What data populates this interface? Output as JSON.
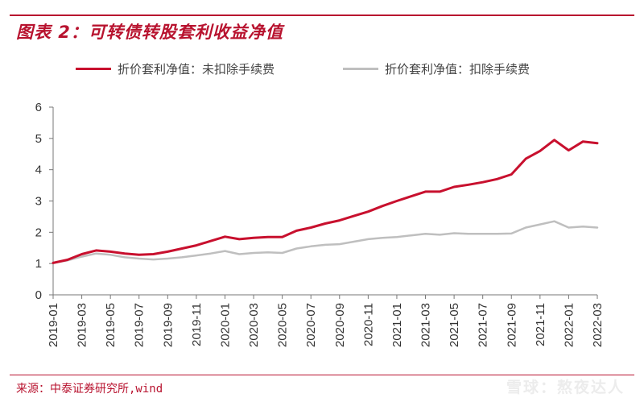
{
  "header": {
    "title": "图表 2：可转债转股套利收益净值"
  },
  "footer": {
    "source": "来源：中泰证券研究所,wind",
    "watermark": "雪球：熬夜达人"
  },
  "colors": {
    "accent": "#b8132f",
    "series_1": "#c8102e",
    "series_2": "#bfbfbf"
  },
  "chart_data": {
    "type": "line",
    "title": "图表 2：可转债转股套利收益净值",
    "xlabel": "",
    "ylabel": "",
    "ylim": [
      0,
      6
    ],
    "yticks": [
      0,
      1,
      2,
      3,
      4,
      5,
      6
    ],
    "x_tick_labels": [
      "2019-01",
      "2019-03",
      "2019-05",
      "2019-07",
      "2019-09",
      "2019-11",
      "2020-01",
      "2020-03",
      "2020-05",
      "2020-07",
      "2020-09",
      "2020-11",
      "2021-01",
      "2021-03",
      "2021-05",
      "2021-07",
      "2021-09",
      "2021-11",
      "2022-01",
      "2022-03"
    ],
    "grid": false,
    "legend_position": "top",
    "x": [
      "2019-01",
      "2019-02",
      "2019-03",
      "2019-04",
      "2019-05",
      "2019-06",
      "2019-07",
      "2019-08",
      "2019-09",
      "2019-10",
      "2019-11",
      "2019-12",
      "2020-01",
      "2020-02",
      "2020-03",
      "2020-04",
      "2020-05",
      "2020-06",
      "2020-07",
      "2020-08",
      "2020-09",
      "2020-10",
      "2020-11",
      "2020-12",
      "2021-01",
      "2021-02",
      "2021-03",
      "2021-04",
      "2021-05",
      "2021-06",
      "2021-07",
      "2021-08",
      "2021-09",
      "2021-10",
      "2021-11",
      "2021-12",
      "2022-01",
      "2022-02",
      "2022-03"
    ],
    "series": [
      {
        "name": "折价套利净值：未扣除手续费",
        "color": "#c8102e",
        "values": [
          1.02,
          1.12,
          1.3,
          1.42,
          1.38,
          1.32,
          1.28,
          1.3,
          1.38,
          1.48,
          1.58,
          1.72,
          1.86,
          1.78,
          1.82,
          1.85,
          1.85,
          2.05,
          2.15,
          2.28,
          2.38,
          2.52,
          2.66,
          2.84,
          3.0,
          3.15,
          3.3,
          3.3,
          3.45,
          3.52,
          3.6,
          3.7,
          3.85,
          4.35,
          4.6,
          4.95,
          4.62,
          4.9,
          4.85
        ]
      },
      {
        "name": "折价套利净值：扣除手续费",
        "color": "#bfbfbf",
        "values": [
          1.02,
          1.1,
          1.22,
          1.32,
          1.28,
          1.2,
          1.16,
          1.13,
          1.16,
          1.2,
          1.26,
          1.32,
          1.4,
          1.3,
          1.34,
          1.36,
          1.34,
          1.48,
          1.55,
          1.6,
          1.62,
          1.7,
          1.78,
          1.82,
          1.85,
          1.9,
          1.95,
          1.92,
          1.97,
          1.95,
          1.95,
          1.95,
          1.96,
          2.15,
          2.25,
          2.35,
          2.15,
          2.18,
          2.15
        ]
      }
    ]
  }
}
